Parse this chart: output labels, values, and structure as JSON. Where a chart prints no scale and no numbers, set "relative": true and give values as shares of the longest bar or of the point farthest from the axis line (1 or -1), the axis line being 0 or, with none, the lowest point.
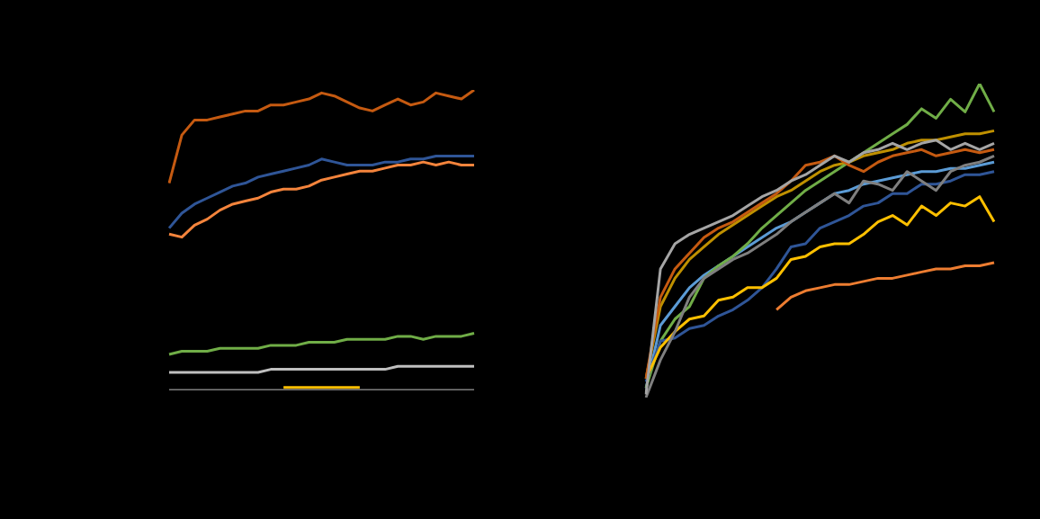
{
  "chart_data": [
    {
      "type": "line",
      "relative": true,
      "categories": [
        null,
        null,
        null,
        null,
        null,
        null,
        null,
        null,
        null,
        null,
        null,
        null,
        null,
        null,
        null,
        null,
        null,
        null,
        null,
        null,
        null,
        null,
        null,
        null,
        null
      ],
      "series": [
        {
          "color": "#c55a11",
          "values": [
            0.69,
            0.85,
            0.9,
            0.9,
            0.91,
            0.92,
            0.93,
            0.93,
            0.95,
            0.95,
            0.96,
            0.97,
            0.99,
            0.98,
            0.96,
            0.94,
            0.93,
            0.95,
            0.97,
            0.95,
            0.96,
            0.99,
            0.98,
            0.97,
            1
          ]
        },
        {
          "color": "#2f5597",
          "values": [
            0.54,
            0.59,
            0.62,
            0.64,
            0.66,
            0.68,
            0.69,
            0.71,
            0.72,
            0.73,
            0.74,
            0.75,
            0.77,
            0.76,
            0.75,
            0.75,
            0.75,
            0.76,
            0.76,
            0.77,
            0.77,
            0.78,
            0.78,
            0.78,
            0.78
          ]
        },
        {
          "color": "#f4843c",
          "values": [
            0.52,
            0.51,
            0.55,
            0.57,
            0.6,
            0.62,
            0.63,
            0.64,
            0.66,
            0.67,
            0.67,
            0.68,
            0.7,
            0.71,
            0.72,
            0.73,
            0.73,
            0.74,
            0.75,
            0.75,
            0.76,
            0.75,
            0.76,
            0.75,
            0.75
          ]
        },
        {
          "color": "#70ad47",
          "values": [
            0.12,
            0.13,
            0.13,
            0.13,
            0.14,
            0.14,
            0.14,
            0.14,
            0.15,
            0.15,
            0.15,
            0.16,
            0.16,
            0.16,
            0.17,
            0.17,
            0.17,
            0.17,
            0.18,
            0.18,
            0.17,
            0.18,
            0.18,
            0.18,
            0.19
          ]
        },
        {
          "color": "#bfbfbf",
          "values": [
            0.06,
            0.06,
            0.06,
            0.06,
            0.06,
            0.06,
            0.06,
            0.06,
            0.07,
            0.07,
            0.07,
            0.07,
            0.07,
            0.07,
            0.07,
            0.07,
            0.07,
            0.07,
            0.08,
            0.08,
            0.08,
            0.08,
            0.08,
            0.08,
            0.08
          ]
        },
        {
          "color": "#7f7f7f",
          "values": [
            0,
            0,
            0,
            0,
            0,
            0,
            0,
            0,
            0,
            0,
            0,
            0,
            0,
            0,
            0,
            0,
            0,
            0,
            0,
            0,
            0,
            0,
            0,
            0,
            0
          ]
        },
        {
          "color": "#ffc000",
          "values": [
            null,
            null,
            null,
            null,
            null,
            null,
            null,
            null,
            null,
            0.01,
            0.01,
            0.01,
            0.01,
            0.01,
            0.01,
            0.01,
            null,
            null,
            null,
            null,
            null,
            null,
            null,
            null,
            null
          ]
        }
      ]
    },
    {
      "type": "line",
      "relative": true,
      "categories": [
        null,
        null,
        null,
        null,
        null,
        null,
        null,
        null,
        null,
        null,
        null,
        null,
        null,
        null,
        null,
        null,
        null,
        null,
        null,
        null,
        null,
        null,
        null,
        null,
        null
      ],
      "series": [
        {
          "color": "#a5a5a5",
          "values": [
            0.01,
            0.41,
            0.49,
            0.52,
            0.54,
            0.56,
            0.58,
            0.61,
            0.64,
            0.66,
            0.69,
            0.71,
            0.74,
            0.77,
            0.75,
            0.78,
            0.79,
            0.81,
            0.79,
            0.81,
            0.82,
            0.79,
            0.81,
            0.79,
            0.81
          ]
        },
        {
          "color": "#7f7f7f",
          "values": [
            0,
            0.12,
            0.21,
            0.32,
            0.38,
            0.41,
            0.44,
            0.46,
            0.49,
            0.52,
            0.56,
            0.59,
            0.62,
            0.65,
            0.62,
            0.69,
            0.68,
            0.66,
            0.72,
            0.69,
            0.66,
            0.72,
            0.74,
            0.75,
            0.77
          ]
        },
        {
          "color": "#c55a11",
          "values": [
            0.06,
            0.32,
            0.41,
            0.46,
            0.51,
            0.54,
            0.56,
            0.59,
            0.62,
            0.65,
            0.69,
            0.74,
            0.75,
            0.77,
            0.74,
            0.72,
            0.75,
            0.77,
            0.78,
            0.79,
            0.77,
            0.78,
            0.79,
            0.78,
            0.79
          ]
        },
        {
          "color": "#ffc000",
          "values": [
            0.06,
            0.16,
            0.21,
            0.25,
            0.26,
            0.31,
            0.32,
            0.35,
            0.35,
            0.38,
            0.44,
            0.45,
            0.48,
            0.49,
            0.49,
            0.52,
            0.56,
            0.58,
            0.55,
            0.61,
            0.58,
            0.62,
            0.61,
            0.64,
            0.56
          ]
        },
        {
          "color": "#2f5597",
          "values": [
            0.05,
            0.18,
            0.19,
            0.22,
            0.23,
            0.26,
            0.28,
            0.31,
            0.35,
            0.41,
            0.48,
            0.49,
            0.54,
            0.56,
            0.58,
            0.61,
            0.62,
            0.65,
            0.65,
            0.68,
            0.68,
            0.69,
            0.71,
            0.71,
            0.72
          ]
        },
        {
          "color": "#ed7d31",
          "values": [
            null,
            null,
            null,
            null,
            null,
            null,
            null,
            null,
            null,
            0.28,
            0.32,
            0.34,
            0.35,
            0.36,
            0.36,
            0.37,
            0.38,
            0.38,
            0.39,
            0.4,
            0.41,
            0.41,
            0.42,
            0.42,
            0.43
          ]
        },
        {
          "color": "#70ad47",
          "values": [
            0.03,
            0.18,
            0.25,
            0.29,
            0.38,
            0.42,
            0.45,
            0.49,
            0.54,
            0.58,
            0.62,
            0.66,
            0.69,
            0.72,
            0.75,
            0.78,
            0.81,
            0.84,
            0.87,
            0.92,
            0.89,
            0.95,
            0.91,
            1,
            0.91
          ]
        },
        {
          "color": "#bf9000",
          "values": [
            0.06,
            0.29,
            0.38,
            0.44,
            0.48,
            0.52,
            0.55,
            0.58,
            0.61,
            0.64,
            0.66,
            0.69,
            0.72,
            0.74,
            0.75,
            0.77,
            0.78,
            0.79,
            0.81,
            0.82,
            0.82,
            0.83,
            0.84,
            0.84,
            0.85
          ]
        },
        {
          "color": "#5b9bd5",
          "values": [
            0.03,
            0.23,
            0.29,
            0.35,
            0.39,
            0.42,
            0.45,
            0.48,
            0.51,
            0.54,
            0.56,
            0.59,
            0.62,
            0.65,
            0.66,
            0.68,
            0.69,
            0.7,
            0.71,
            0.72,
            0.72,
            0.73,
            0.73,
            0.74,
            0.75
          ]
        }
      ]
    }
  ]
}
